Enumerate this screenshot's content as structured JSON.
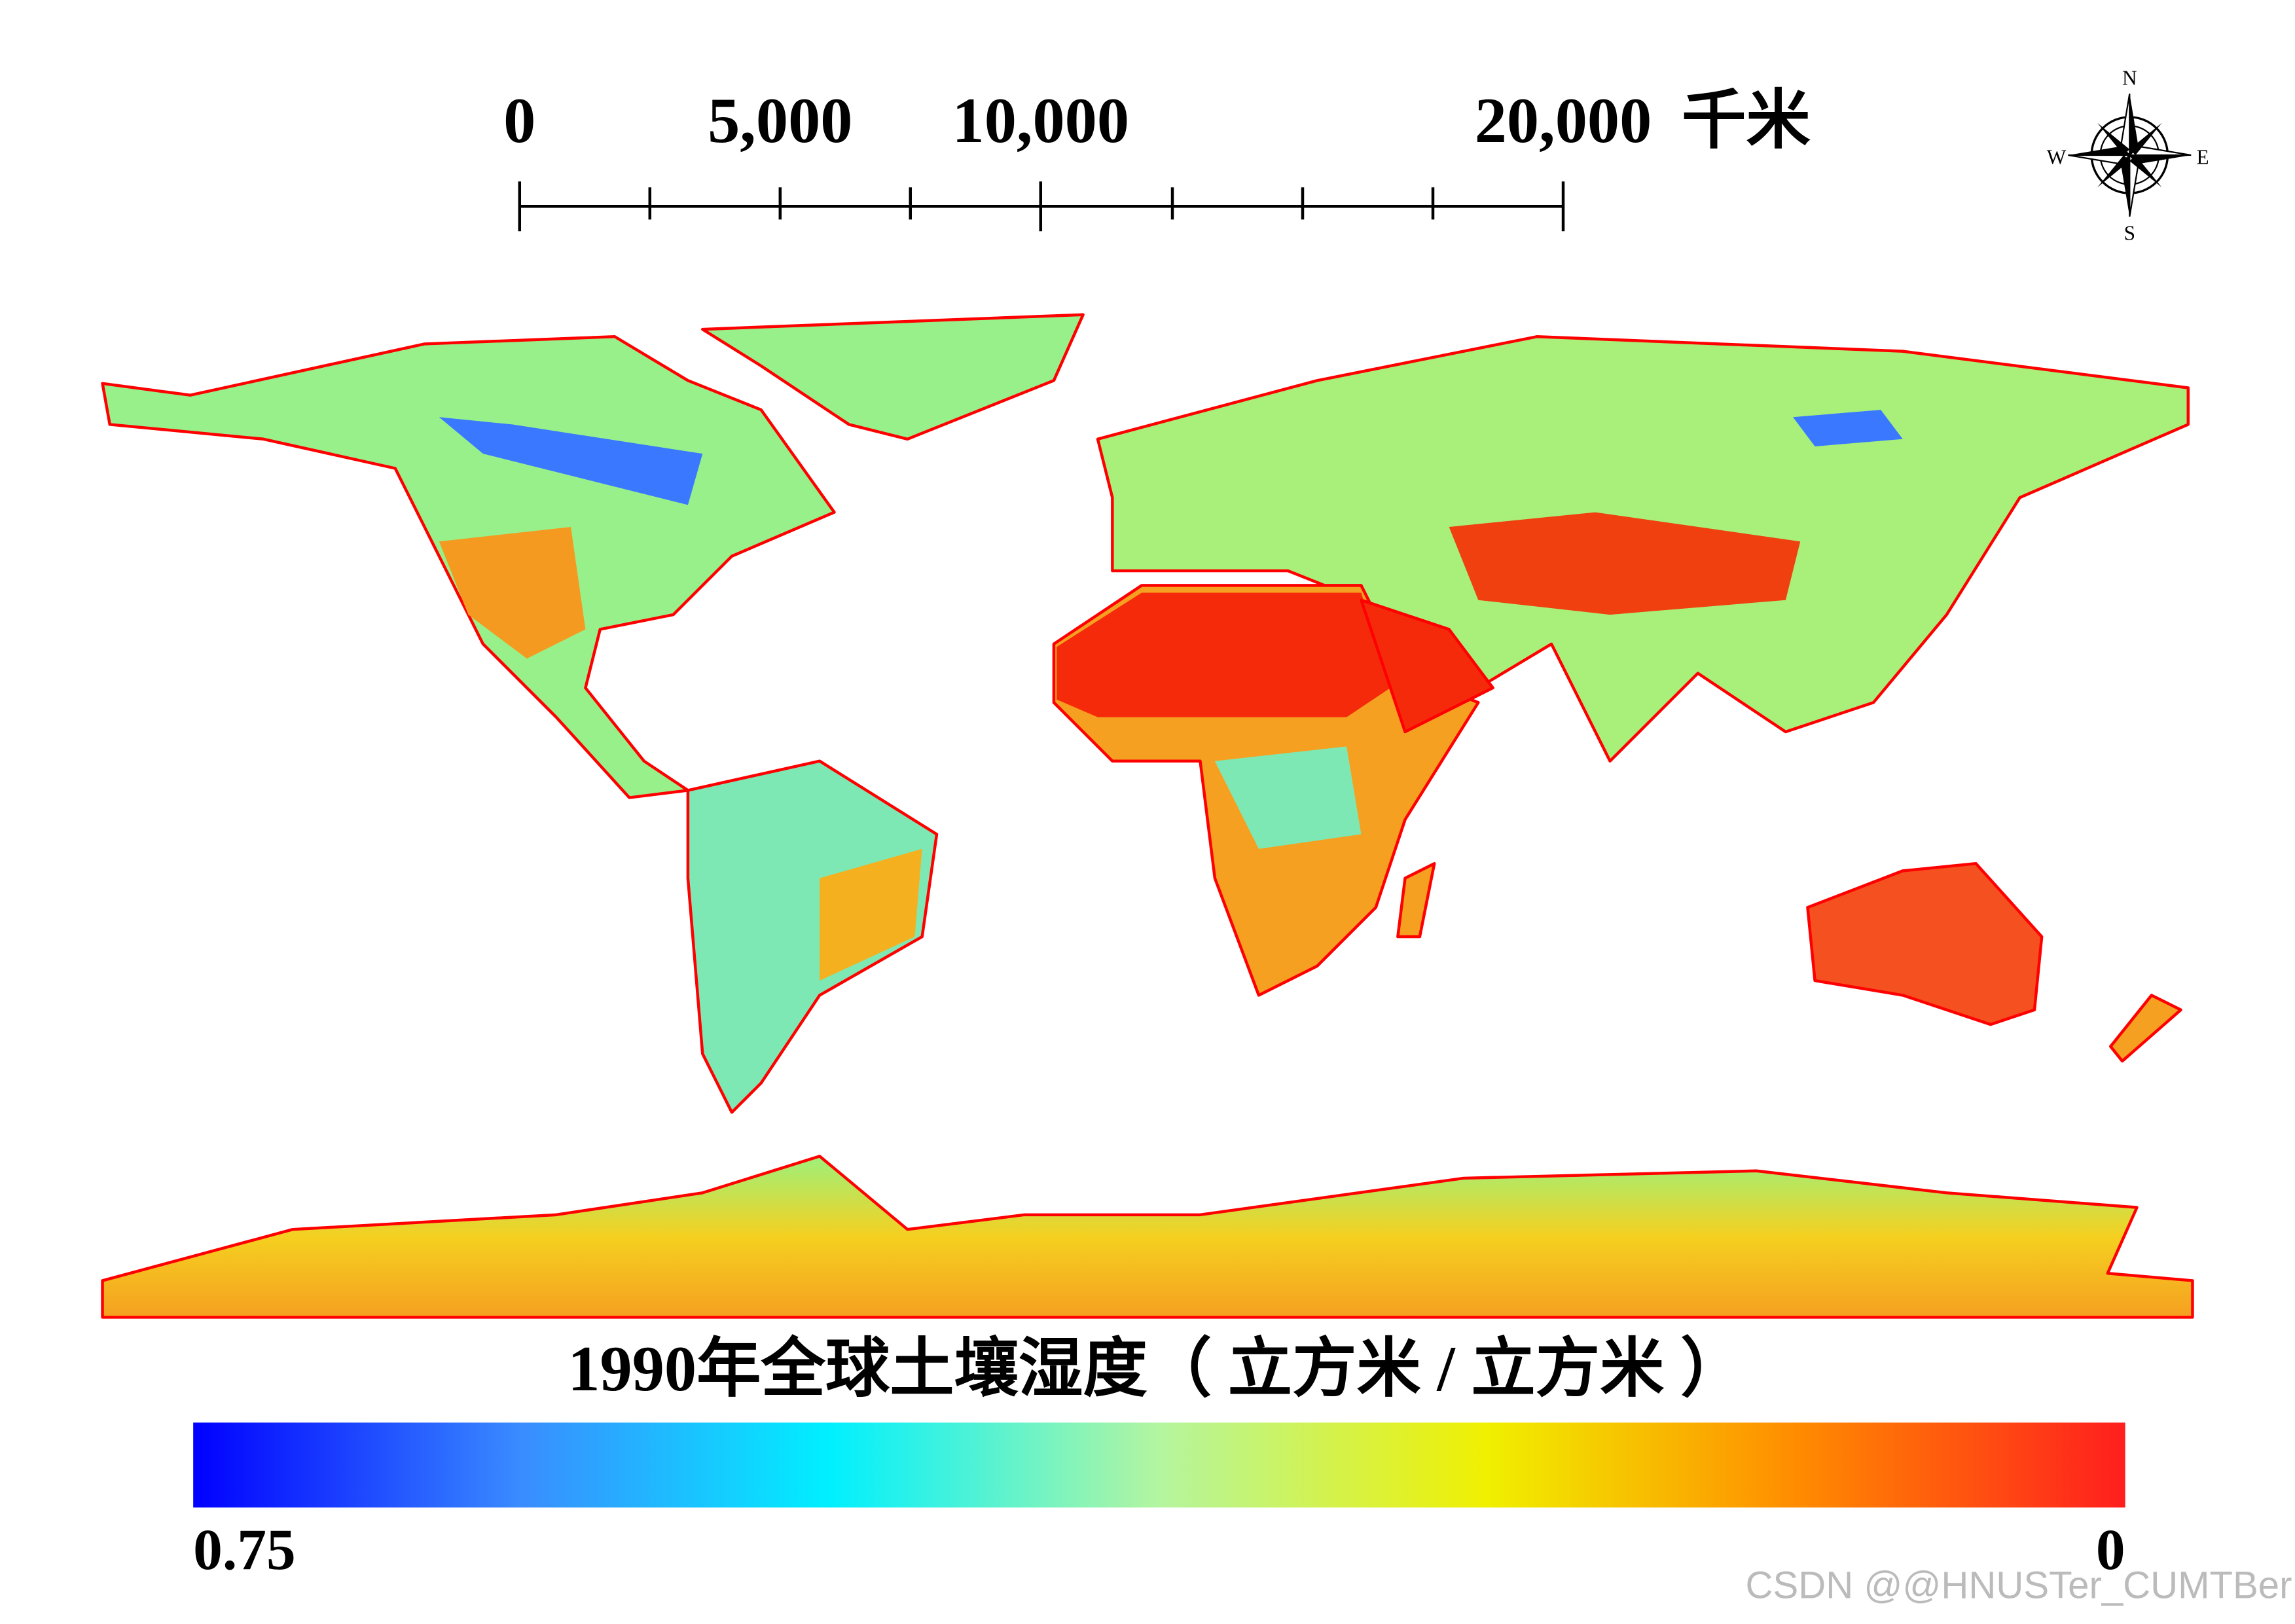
{
  "scale_bar": {
    "labels": [
      "0",
      "5,000",
      "10,000",
      "20,000"
    ],
    "unit": "千米"
  },
  "compass": {
    "north": "N",
    "east": "E",
    "south": "S",
    "west": "W"
  },
  "title": "1990年全球土壤湿度（ 立方米 / 立方米 ）",
  "legend": {
    "max_label": "0.75",
    "min_label": "0"
  },
  "watermark": "CSDN @@HNUSTer_CUMTBer"
}
